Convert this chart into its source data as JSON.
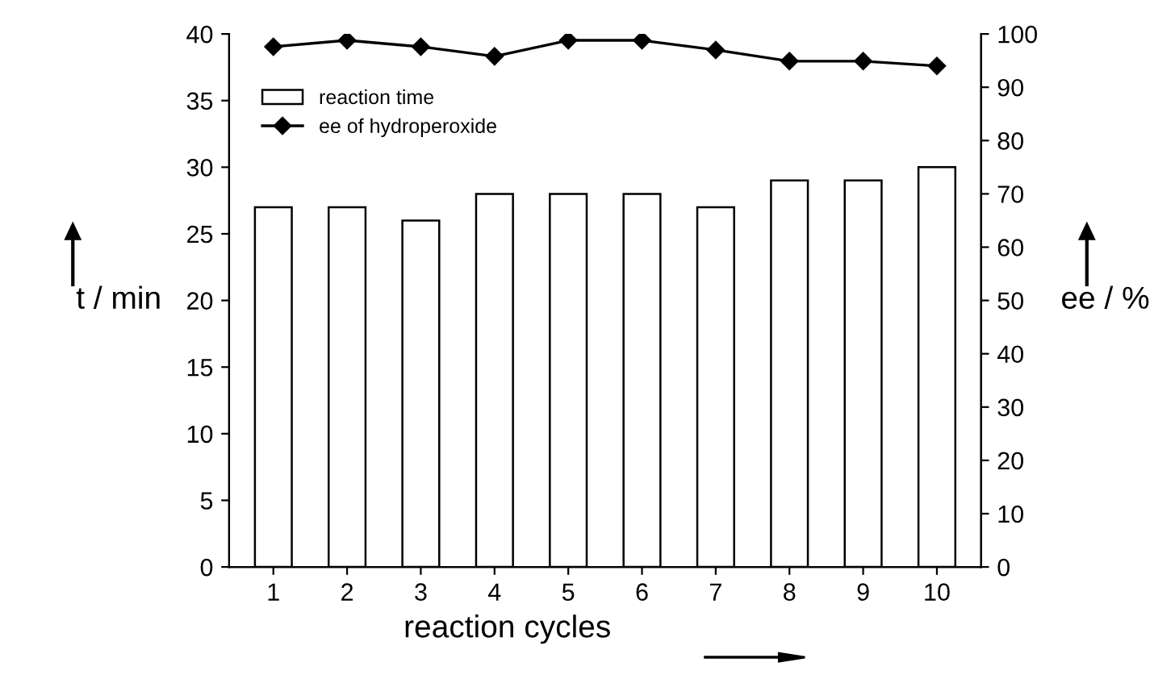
{
  "chart_data": {
    "type": "bar",
    "xlabel": "reaction cycles",
    "ylabel": "t / min",
    "y2label": "ee / %",
    "categories": [
      "1",
      "2",
      "3",
      "4",
      "5",
      "6",
      "7",
      "8",
      "9",
      "10"
    ],
    "series": [
      {
        "name": "reaction time",
        "color": "#ffffff",
        "values": [
          27,
          27,
          26,
          28,
          28,
          28,
          27,
          29,
          29,
          30
        ]
      },
      {
        "name": "ee of hydroperoxide",
        "type": "line",
        "axis": "y2",
        "color": "#000000",
        "marker": "diamond",
        "values": [
          97.6,
          98.8,
          97.6,
          95.8,
          98.8,
          98.8,
          97,
          94.9,
          94.9,
          94
        ]
      }
    ],
    "ylim": [
      0,
      40
    ],
    "yticks": [
      0,
      5,
      10,
      15,
      20,
      25,
      30,
      35,
      40
    ],
    "y2lim": [
      0,
      100
    ],
    "y2ticks": [
      0,
      10,
      20,
      30,
      40,
      50,
      60,
      70,
      80,
      90,
      100
    ],
    "grid": false,
    "legend": "top left"
  }
}
